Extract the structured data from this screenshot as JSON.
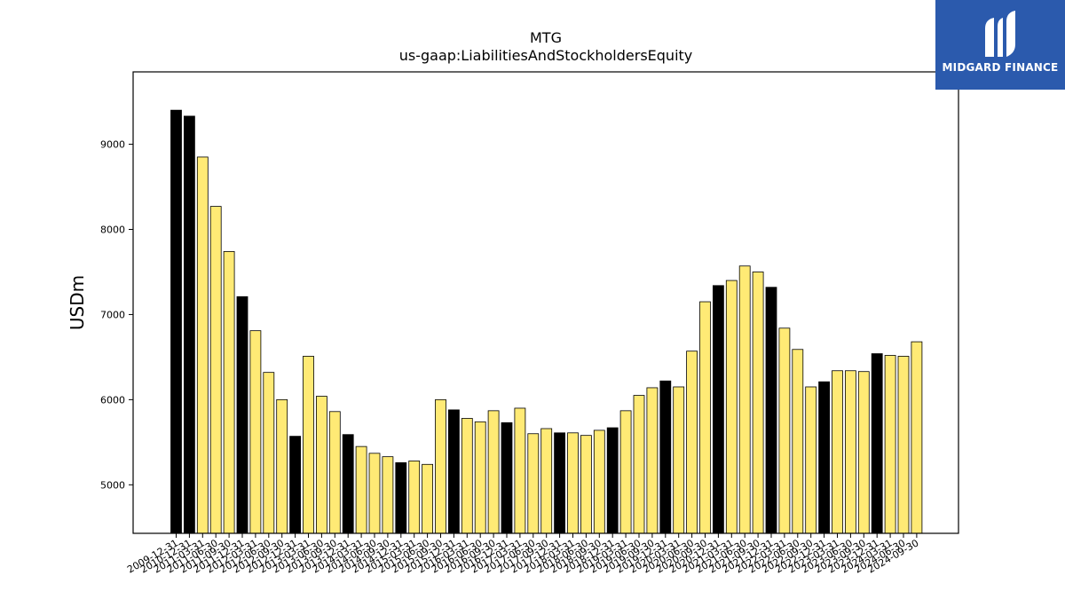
{
  "chart_data": {
    "type": "bar",
    "title": "MTG",
    "subtitle": "us-gaap:LiabilitiesAndStockholdersEquity",
    "xlabel": "",
    "ylabel": "USDm",
    "ylim": [
      4430,
      9850
    ],
    "yticks": [
      5000,
      6000,
      7000,
      8000,
      9000
    ],
    "grid": false,
    "colors": {
      "annual": "#000000",
      "quarterly": "#ffea75",
      "edge": "#000000"
    },
    "categories": [
      "2009-12-31",
      "2010-12-31",
      "2011-03-31",
      "2011-06-30",
      "2011-09-30",
      "2011-12-31",
      "2012-03-31",
      "2012-06-30",
      "2012-09-30",
      "2012-12-31",
      "2013-03-31",
      "2013-06-30",
      "2013-09-30",
      "2013-12-31",
      "2014-03-31",
      "2014-06-30",
      "2014-09-30",
      "2014-12-31",
      "2015-03-31",
      "2015-06-30",
      "2015-09-30",
      "2015-12-31",
      "2016-03-31",
      "2016-06-30",
      "2016-09-30",
      "2016-12-31",
      "2017-03-31",
      "2017-06-30",
      "2017-09-30",
      "2017-12-31",
      "2018-03-31",
      "2018-06-30",
      "2018-09-30",
      "2018-12-31",
      "2019-03-31",
      "2019-06-30",
      "2019-09-30",
      "2019-12-31",
      "2020-03-31",
      "2020-06-30",
      "2020-09-30",
      "2020-12-31",
      "2021-03-31",
      "2021-06-30",
      "2021-09-30",
      "2021-12-31",
      "2022-03-31",
      "2022-06-30",
      "2022-09-30",
      "2022-12-31",
      "2023-03-31",
      "2023-06-30",
      "2023-09-30",
      "2023-12-31",
      "2024-03-31",
      "2024-06-30",
      "2024-09-30"
    ],
    "values": [
      9400,
      9330,
      8850,
      8270,
      7740,
      7210,
      6810,
      6320,
      6000,
      5570,
      6510,
      6040,
      5860,
      5590,
      5450,
      5370,
      5330,
      5260,
      5280,
      5240,
      6000,
      5880,
      5780,
      5740,
      5870,
      5730,
      5900,
      5600,
      5660,
      5610,
      5610,
      5580,
      5640,
      5670,
      5870,
      6050,
      6140,
      6220,
      6150,
      6570,
      7150,
      7340,
      7400,
      7570,
      7500,
      7320,
      6840,
      6590,
      6150,
      6210,
      6340,
      6340,
      6330,
      6540,
      6520,
      6510,
      6680
    ],
    "kinds": [
      "A",
      "A",
      "Q",
      "Q",
      "Q",
      "A",
      "Q",
      "Q",
      "Q",
      "A",
      "Q",
      "Q",
      "Q",
      "A",
      "Q",
      "Q",
      "Q",
      "A",
      "Q",
      "Q",
      "Q",
      "A",
      "Q",
      "Q",
      "Q",
      "A",
      "Q",
      "Q",
      "Q",
      "A",
      "Q",
      "Q",
      "Q",
      "A",
      "Q",
      "Q",
      "Q",
      "A",
      "Q",
      "Q",
      "Q",
      "A",
      "Q",
      "Q",
      "Q",
      "A",
      "Q",
      "Q",
      "Q",
      "A",
      "Q",
      "Q",
      "Q",
      "A",
      "Q",
      "Q",
      "Q"
    ]
  },
  "logo": {
    "text": "MIDGARD FINANCE"
  }
}
